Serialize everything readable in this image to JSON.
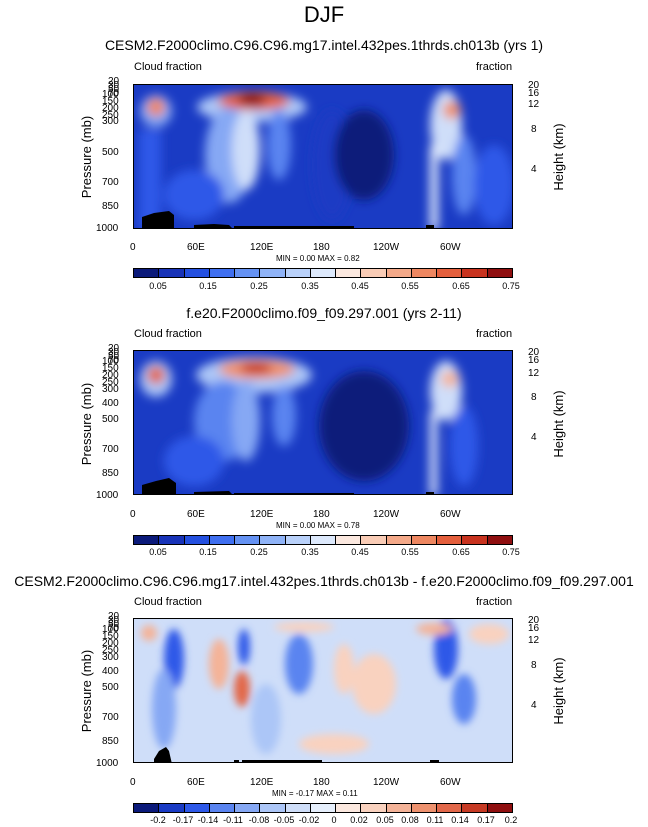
{
  "figure": {
    "title": "DJF"
  },
  "colors": {
    "seq": [
      "#0b1a7a",
      "#1833b8",
      "#2450e0",
      "#3f6ff0",
      "#6592f3",
      "#8fb3f7",
      "#b9d1fa",
      "#dde9fc",
      "#fbe8df",
      "#f9ccb6",
      "#f4a989",
      "#ee8761",
      "#e45f3d",
      "#c8331f",
      "#8f0f10"
    ],
    "div": [
      "#0b1a7a",
      "#1a3bc4",
      "#2e59e8",
      "#5a84f0",
      "#86a8f4",
      "#acc6f7",
      "#cfdef9",
      "#e6effc",
      "#fbe8df",
      "#f9d2bf",
      "#f4b398",
      "#ee926f",
      "#e2684a",
      "#c63a24",
      "#8f0f10"
    ]
  },
  "chart_data": [
    {
      "type": "heatmap",
      "title": "CESM2.F2000climo.C96.C96.mg17.intel.432pes.1thrds.ch013b (yrs 1)",
      "left_label": "Cloud fraction",
      "right_label": "fraction",
      "ylabel": "Pressure (mb)",
      "ylabel_right": "Height (km)",
      "x_ticks": [
        "0",
        "60E",
        "120E",
        "180",
        "120W",
        "60W"
      ],
      "y_ticks": [
        "20",
        "30",
        "50",
        "70",
        "100",
        "150",
        "200",
        "250",
        "300",
        "400",
        "500",
        "700",
        "850",
        "1000"
      ],
      "y_ticks_right": [
        "20",
        "16",
        "12",
        "8",
        "4"
      ],
      "min_label": "MIN =",
      "min": "0.00",
      "max_label": "MAX =",
      "max": "0.82",
      "colorbar_labels": [
        "0.05",
        "0.15",
        "0.25",
        "0.35",
        "0.45",
        "0.55",
        "0.65",
        "0.75"
      ]
    },
    {
      "type": "heatmap",
      "title": "f.e20.F2000climo.f09_f09.297.001 (yrs 2-11)",
      "left_label": "Cloud fraction",
      "right_label": "fraction",
      "ylabel": "Pressure (mb)",
      "ylabel_right": "Height (km)",
      "x_ticks": [
        "0",
        "60E",
        "120E",
        "180",
        "120W",
        "60W"
      ],
      "y_ticks": [
        "20",
        "30",
        "50",
        "70",
        "100",
        "150",
        "200",
        "250",
        "300",
        "400",
        "500",
        "700",
        "850",
        "1000"
      ],
      "y_ticks_right": [
        "20",
        "16",
        "12",
        "8",
        "4"
      ],
      "min_label": "MIN =",
      "min": "0.00",
      "max_label": "MAX =",
      "max": "0.78",
      "colorbar_labels": [
        "0.05",
        "0.15",
        "0.25",
        "0.35",
        "0.45",
        "0.55",
        "0.65",
        "0.75"
      ]
    },
    {
      "type": "heatmap",
      "title": "CESM2.F2000climo.C96.C96.mg17.intel.432pes.1thrds.ch013b - f.e20.F2000climo.f09_f09.297.001",
      "left_label": "Cloud fraction",
      "right_label": "fraction",
      "ylabel": "Pressure (mb)",
      "ylabel_right": "Height (km)",
      "x_ticks": [
        "0",
        "60E",
        "120E",
        "180",
        "120W",
        "60W"
      ],
      "y_ticks": [
        "20",
        "30",
        "50",
        "70",
        "100",
        "150",
        "200",
        "250",
        "300",
        "400",
        "500",
        "700",
        "850",
        "1000"
      ],
      "y_ticks_right": [
        "20",
        "16",
        "12",
        "8",
        "4"
      ],
      "min_label": "MIN =",
      "min": "-0.17",
      "max_label": "MAX =",
      "max": "0.11",
      "colorbar_labels": [
        "-0.2",
        "-0.17",
        "-0.14",
        "-0.11",
        "-0.08",
        "-0.05",
        "-0.02",
        "0",
        "0.02",
        "0.05",
        "0.08",
        "0.11",
        "0.14",
        "0.17",
        "0.2"
      ]
    }
  ]
}
